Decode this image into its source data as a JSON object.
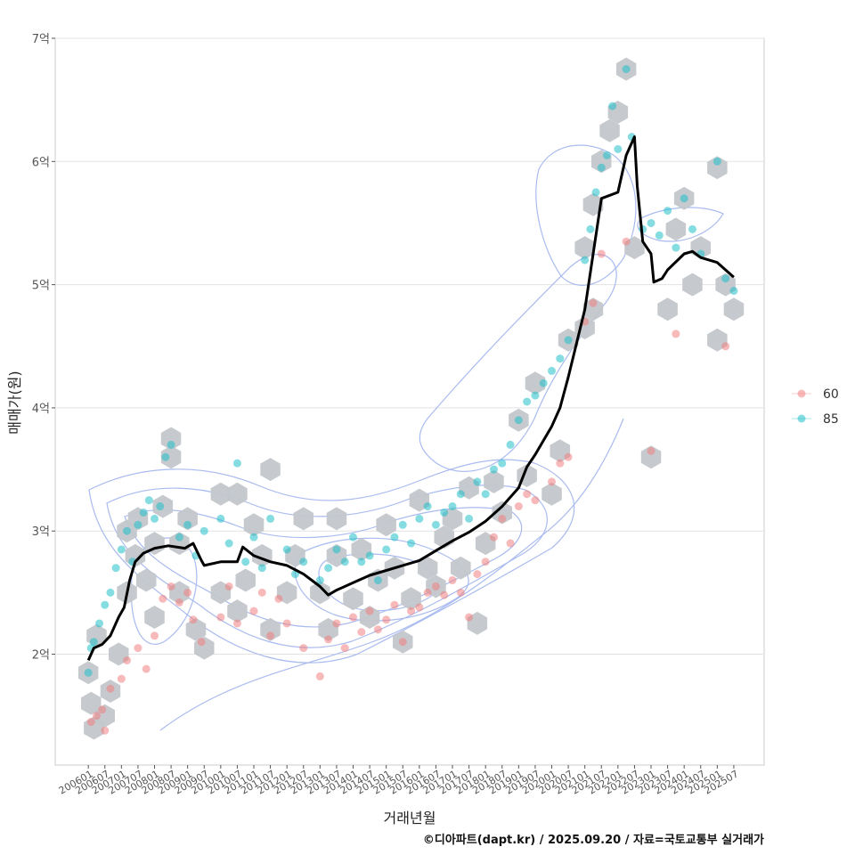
{
  "chart_data": {
    "type": "scatter",
    "title": "",
    "xlabel": "거래년월",
    "ylabel": "매매가(원)",
    "caption": "©디아파트(dapt.kr) / 2025.09.20 / 자료=국토교통부 실거래가",
    "x_range": [
      "200501",
      "202606"
    ],
    "ylim": [
      1.1,
      7.0
    ],
    "y_ticks": [
      {
        "value": 2,
        "label": "2억"
      },
      {
        "value": 3,
        "label": "3억"
      },
      {
        "value": 4,
        "label": "4억"
      },
      {
        "value": 5,
        "label": "5억"
      },
      {
        "value": 6,
        "label": "6억"
      },
      {
        "value": 7,
        "label": "7억"
      }
    ],
    "x_ticks": [
      "200601",
      "200607",
      "200701",
      "200707",
      "200801",
      "200807",
      "200901",
      "200907",
      "201001",
      "201007",
      "201101",
      "201107",
      "201201",
      "201207",
      "201301",
      "201307",
      "201401",
      "201407",
      "201501",
      "201507",
      "201601",
      "201607",
      "201701",
      "201707",
      "201801",
      "201807",
      "201901",
      "201907",
      "202001",
      "202007",
      "202101",
      "202107",
      "202201",
      "202207",
      "202301",
      "202307",
      "202401",
      "202407",
      "202501",
      "202507"
    ],
    "legend": {
      "position": "right",
      "entries": [
        {
          "label": "60",
          "color": "#f08080"
        },
        {
          "label": "85",
          "color": "#20c0c8"
        }
      ]
    },
    "colors": {
      "trend": "#000000",
      "hex": "#c3c7cb",
      "contour": "#8ea6e8",
      "series_60": "#f08080",
      "series_85": "#20c0c8"
    },
    "trend_line": {
      "name": "moving average",
      "points": [
        [
          "200601",
          1.95
        ],
        [
          "200603",
          2.05
        ],
        [
          "200606",
          2.08
        ],
        [
          "200609",
          2.15
        ],
        [
          "200612",
          2.3
        ],
        [
          "200702",
          2.38
        ],
        [
          "200704",
          2.6
        ],
        [
          "200706",
          2.75
        ],
        [
          "200709",
          2.82
        ],
        [
          "200801",
          2.86
        ],
        [
          "200806",
          2.88
        ],
        [
          "200812",
          2.86
        ],
        [
          "200903",
          2.9
        ],
        [
          "200906",
          2.76
        ],
        [
          "200907",
          2.72
        ],
        [
          "201001",
          2.75
        ],
        [
          "201007",
          2.75
        ],
        [
          "201009",
          2.87
        ],
        [
          "201101",
          2.8
        ],
        [
          "201107",
          2.75
        ],
        [
          "201201",
          2.72
        ],
        [
          "201207",
          2.65
        ],
        [
          "201301",
          2.55
        ],
        [
          "201304",
          2.48
        ],
        [
          "201307",
          2.52
        ],
        [
          "201401",
          2.58
        ],
        [
          "201407",
          2.64
        ],
        [
          "201501",
          2.68
        ],
        [
          "201507",
          2.72
        ],
        [
          "201601",
          2.76
        ],
        [
          "201607",
          2.84
        ],
        [
          "201701",
          2.92
        ],
        [
          "201707",
          2.99
        ],
        [
          "201801",
          3.08
        ],
        [
          "201807",
          3.2
        ],
        [
          "201901",
          3.35
        ],
        [
          "201904",
          3.52
        ],
        [
          "201907",
          3.62
        ],
        [
          "202001",
          3.85
        ],
        [
          "202004",
          4.0
        ],
        [
          "202007",
          4.25
        ],
        [
          "202101",
          4.8
        ],
        [
          "202104",
          5.25
        ],
        [
          "202107",
          5.7
        ],
        [
          "202201",
          5.75
        ],
        [
          "202204",
          6.05
        ],
        [
          "202207",
          6.2
        ],
        [
          "202208",
          5.8
        ],
        [
          "202210",
          5.35
        ],
        [
          "202301",
          5.25
        ],
        [
          "202302",
          5.02
        ],
        [
          "202305",
          5.05
        ],
        [
          "202307",
          5.12
        ],
        [
          "202401",
          5.25
        ],
        [
          "202404",
          5.27
        ],
        [
          "202407",
          5.22
        ],
        [
          "202501",
          5.18
        ],
        [
          "202504",
          5.12
        ],
        [
          "202507",
          5.06
        ]
      ]
    },
    "hexbins": [
      [
        "200601",
        1.85
      ],
      [
        "200602",
        1.6
      ],
      [
        "200604",
        2.15
      ],
      [
        "200603",
        1.4
      ],
      [
        "200607",
        1.5
      ],
      [
        "200609",
        1.7
      ],
      [
        "200612",
        2.0
      ],
      [
        "200703",
        2.5
      ],
      [
        "200706",
        2.8
      ],
      [
        "200703",
        3.0
      ],
      [
        "200707",
        3.1
      ],
      [
        "200710",
        2.6
      ],
      [
        "200801",
        2.3
      ],
      [
        "200801",
        2.9
      ],
      [
        "200804",
        3.2
      ],
      [
        "200807",
        3.6
      ],
      [
        "200807",
        3.75
      ],
      [
        "200810",
        2.5
      ],
      [
        "200810",
        2.9
      ],
      [
        "200901",
        3.1
      ],
      [
        "200904",
        2.2
      ],
      [
        "200907",
        2.05
      ],
      [
        "201001",
        3.3
      ],
      [
        "201001",
        2.5
      ],
      [
        "201007",
        2.35
      ],
      [
        "201007",
        3.3
      ],
      [
        "201010",
        2.6
      ],
      [
        "201101",
        3.05
      ],
      [
        "201104",
        2.8
      ],
      [
        "201107",
        2.2
      ],
      [
        "201107",
        3.5
      ],
      [
        "201201",
        2.5
      ],
      [
        "201204",
        2.8
      ],
      [
        "201207",
        3.1
      ],
      [
        "201301",
        2.5
      ],
      [
        "201304",
        2.2
      ],
      [
        "201307",
        2.8
      ],
      [
        "201307",
        3.1
      ],
      [
        "201401",
        2.45
      ],
      [
        "201404",
        2.85
      ],
      [
        "201407",
        2.3
      ],
      [
        "201410",
        2.6
      ],
      [
        "201501",
        3.05
      ],
      [
        "201504",
        2.7
      ],
      [
        "201507",
        2.1
      ],
      [
        "201510",
        2.45
      ],
      [
        "201601",
        3.25
      ],
      [
        "201604",
        2.7
      ],
      [
        "201607",
        2.55
      ],
      [
        "201610",
        2.95
      ],
      [
        "201701",
        3.1
      ],
      [
        "201704",
        2.7
      ],
      [
        "201707",
        3.35
      ],
      [
        "201710",
        2.25
      ],
      [
        "201801",
        2.9
      ],
      [
        "201804",
        3.4
      ],
      [
        "201807",
        3.15
      ],
      [
        "201901",
        3.9
      ],
      [
        "201904",
        3.45
      ],
      [
        "201907",
        4.2
      ],
      [
        "202001",
        3.3
      ],
      [
        "202004",
        3.65
      ],
      [
        "202007",
        4.55
      ],
      [
        "202101",
        4.65
      ],
      [
        "202104",
        4.8
      ],
      [
        "202101",
        5.3
      ],
      [
        "202104",
        5.65
      ],
      [
        "202107",
        6.0
      ],
      [
        "202110",
        6.25
      ],
      [
        "202201",
        6.4
      ],
      [
        "202204",
        6.75
      ],
      [
        "202207",
        5.3
      ],
      [
        "202301",
        3.6
      ],
      [
        "202307",
        4.8
      ],
      [
        "202310",
        5.45
      ],
      [
        "202401",
        5.7
      ],
      [
        "202404",
        5.0
      ],
      [
        "202407",
        5.3
      ],
      [
        "202501",
        5.95
      ],
      [
        "202501",
        4.55
      ],
      [
        "202504",
        5.0
      ],
      [
        "202507",
        4.8
      ]
    ],
    "series": [
      {
        "name": "60",
        "points": [
          [
            "200602",
            1.45
          ],
          [
            "200604",
            1.5
          ],
          [
            "200606",
            1.55
          ],
          [
            "200607",
            1.38
          ],
          [
            "200609",
            1.72
          ],
          [
            "200701",
            1.8
          ],
          [
            "200703",
            1.95
          ],
          [
            "200707",
            2.05
          ],
          [
            "200710",
            1.88
          ],
          [
            "200801",
            2.15
          ],
          [
            "200804",
            2.45
          ],
          [
            "200807",
            2.55
          ],
          [
            "200810",
            2.42
          ],
          [
            "200901",
            2.5
          ],
          [
            "200903",
            2.28
          ],
          [
            "200906",
            2.1
          ],
          [
            "201001",
            2.3
          ],
          [
            "201004",
            2.55
          ],
          [
            "201007",
            2.25
          ],
          [
            "201101",
            2.35
          ],
          [
            "201104",
            2.5
          ],
          [
            "201107",
            2.15
          ],
          [
            "201110",
            2.45
          ],
          [
            "201201",
            2.25
          ],
          [
            "201207",
            2.05
          ],
          [
            "201301",
            1.82
          ],
          [
            "201304",
            2.12
          ],
          [
            "201307",
            2.25
          ],
          [
            "201310",
            2.05
          ],
          [
            "201401",
            2.3
          ],
          [
            "201404",
            2.18
          ],
          [
            "201407",
            2.35
          ],
          [
            "201410",
            2.2
          ],
          [
            "201501",
            2.28
          ],
          [
            "201504",
            2.4
          ],
          [
            "201507",
            2.1
          ],
          [
            "201510",
            2.35
          ],
          [
            "201601",
            2.38
          ],
          [
            "201604",
            2.5
          ],
          [
            "201607",
            2.55
          ],
          [
            "201610",
            2.48
          ],
          [
            "201701",
            2.6
          ],
          [
            "201704",
            2.5
          ],
          [
            "201707",
            2.3
          ],
          [
            "201710",
            2.65
          ],
          [
            "201801",
            2.75
          ],
          [
            "201804",
            2.95
          ],
          [
            "201807",
            3.1
          ],
          [
            "201810",
            2.9
          ],
          [
            "201901",
            3.2
          ],
          [
            "201904",
            3.3
          ],
          [
            "201907",
            3.25
          ],
          [
            "202001",
            3.4
          ],
          [
            "202004",
            3.55
          ],
          [
            "202007",
            3.6
          ],
          [
            "202101",
            4.7
          ],
          [
            "202104",
            4.85
          ],
          [
            "202107",
            5.25
          ],
          [
            "202204",
            5.35
          ],
          [
            "202301",
            3.65
          ],
          [
            "202310",
            4.6
          ],
          [
            "202504",
            4.5
          ]
        ]
      },
      {
        "name": "85",
        "points": [
          [
            "200601",
            1.85
          ],
          [
            "200602",
            2.05
          ],
          [
            "200603",
            2.1
          ],
          [
            "200605",
            2.25
          ],
          [
            "200607",
            2.4
          ],
          [
            "200609",
            2.5
          ],
          [
            "200611",
            2.7
          ],
          [
            "200701",
            2.85
          ],
          [
            "200703",
            3.0
          ],
          [
            "200705",
            2.75
          ],
          [
            "200707",
            3.05
          ],
          [
            "200709",
            3.15
          ],
          [
            "200711",
            3.25
          ],
          [
            "200801",
            3.1
          ],
          [
            "200803",
            3.2
          ],
          [
            "200805",
            3.6
          ],
          [
            "200807",
            3.7
          ],
          [
            "200810",
            2.95
          ],
          [
            "200901",
            3.05
          ],
          [
            "200904",
            2.8
          ],
          [
            "200907",
            3.0
          ],
          [
            "201001",
            3.1
          ],
          [
            "201004",
            2.9
          ],
          [
            "201007",
            3.55
          ],
          [
            "201010",
            2.75
          ],
          [
            "201101",
            2.95
          ],
          [
            "201104",
            2.7
          ],
          [
            "201107",
            3.1
          ],
          [
            "201201",
            2.85
          ],
          [
            "201204",
            2.65
          ],
          [
            "201207",
            2.75
          ],
          [
            "201301",
            2.6
          ],
          [
            "201304",
            2.7
          ],
          [
            "201307",
            2.85
          ],
          [
            "201310",
            2.75
          ],
          [
            "201401",
            2.95
          ],
          [
            "201404",
            2.75
          ],
          [
            "201407",
            2.8
          ],
          [
            "201410",
            2.6
          ],
          [
            "201501",
            2.85
          ],
          [
            "201504",
            2.95
          ],
          [
            "201507",
            3.05
          ],
          [
            "201510",
            2.9
          ],
          [
            "201601",
            3.1
          ],
          [
            "201604",
            3.2
          ],
          [
            "201607",
            3.05
          ],
          [
            "201610",
            3.15
          ],
          [
            "201701",
            3.2
          ],
          [
            "201704",
            3.3
          ],
          [
            "201707",
            3.1
          ],
          [
            "201710",
            3.4
          ],
          [
            "201801",
            3.3
          ],
          [
            "201804",
            3.5
          ],
          [
            "201807",
            3.55
          ],
          [
            "201810",
            3.7
          ],
          [
            "201901",
            3.9
          ],
          [
            "201904",
            4.05
          ],
          [
            "201907",
            4.1
          ],
          [
            "201910",
            4.2
          ],
          [
            "202001",
            4.3
          ],
          [
            "202004",
            4.4
          ],
          [
            "202007",
            4.55
          ],
          [
            "202101",
            5.2
          ],
          [
            "202103",
            5.45
          ],
          [
            "202105",
            5.75
          ],
          [
            "202107",
            5.95
          ],
          [
            "202109",
            6.05
          ],
          [
            "202111",
            6.45
          ],
          [
            "202201",
            6.1
          ],
          [
            "202204",
            6.75
          ],
          [
            "202206",
            6.2
          ],
          [
            "202210",
            5.45
          ],
          [
            "202301",
            5.5
          ],
          [
            "202304",
            5.4
          ],
          [
            "202307",
            5.6
          ],
          [
            "202310",
            5.3
          ],
          [
            "202401",
            5.7
          ],
          [
            "202404",
            5.45
          ],
          [
            "202407",
            5.25
          ],
          [
            "202501",
            6.0
          ],
          [
            "202504",
            5.05
          ],
          [
            "202507",
            4.95
          ]
        ]
      }
    ]
  }
}
